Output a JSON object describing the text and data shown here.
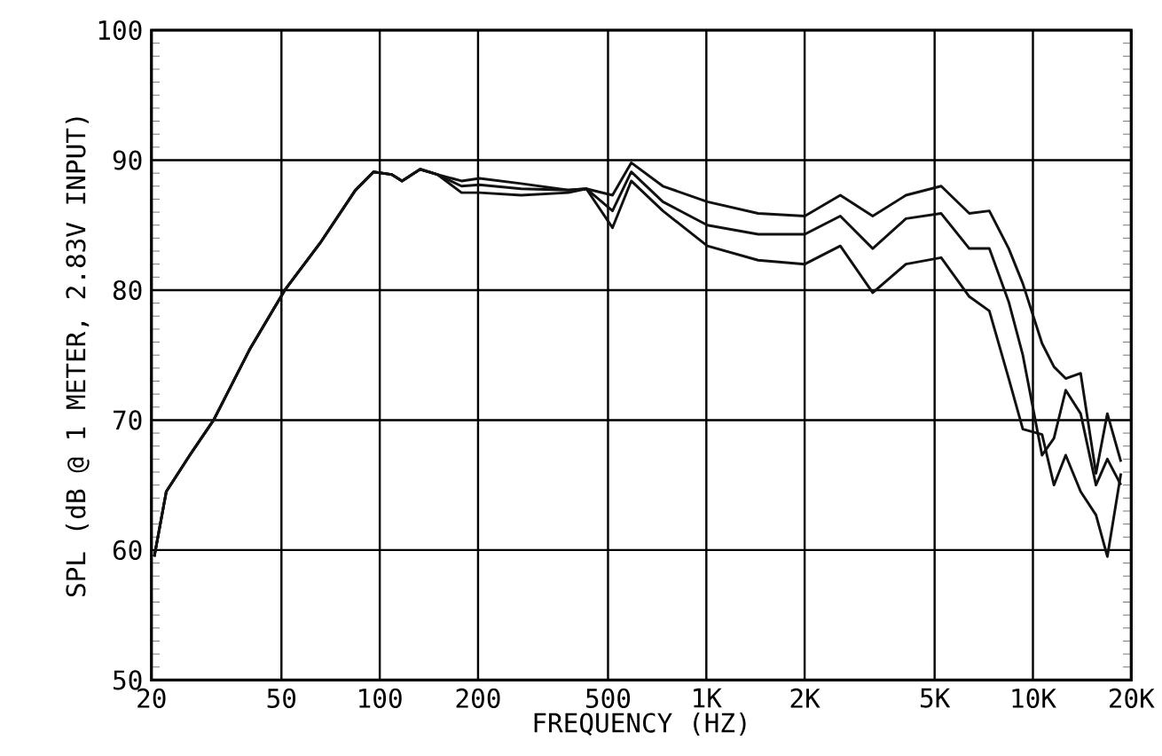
{
  "chart_data": {
    "type": "line",
    "xlabel": "FREQUENCY (HZ)",
    "ylabel": "SPL (dB @ 1 METER, 2.83V INPUT)",
    "log": "x",
    "grid": true,
    "xlim": [
      20,
      20000
    ],
    "ylim": [
      50,
      100
    ],
    "xticks": [
      20,
      50,
      100,
      200,
      500,
      {
        "value": 1000,
        "label": "1K"
      },
      {
        "value": 2000,
        "label": "2K"
      },
      {
        "value": 5000,
        "label": "5K"
      },
      {
        "value": 10000,
        "label": "10K"
      },
      {
        "value": 20000,
        "label": "20K"
      }
    ],
    "yticks": [
      50,
      60,
      70,
      80,
      90,
      100
    ],
    "series": [
      {
        "color": "#111111",
        "x": [
          20.4,
          22.2,
          26.2,
          31,
          39.9,
          51.2,
          65.6,
          84.3,
          95.7,
          108.6,
          117,
          133,
          150,
          178,
          202,
          271,
          378,
          429,
          516,
          589,
          736,
          1007,
          1441,
          2002,
          2572,
          3232,
          4085,
          5237,
          6386,
          7355,
          8432,
          9313,
          10664,
          11600,
          12600,
          14000,
          15600,
          16900,
          18600
        ],
        "values": [
          59.5,
          64.5,
          67.3,
          70.0,
          75.4,
          80.0,
          83.6,
          87.7,
          89.1,
          88.9,
          88.4,
          89.3,
          88.9,
          88.4,
          88.6,
          88.2,
          87.7,
          87.8,
          87.3,
          89.8,
          88.0,
          86.8,
          85.9,
          85.7,
          87.3,
          85.7,
          87.3,
          88.0,
          85.9,
          86.1,
          83.2,
          80.5,
          75.9,
          74.1,
          73.2,
          73.6,
          65.9,
          70.5,
          66.8
        ]
      },
      {
        "color": "#111111",
        "x": [
          20.4,
          22.2,
          26.2,
          31,
          39.9,
          51.2,
          65.6,
          84.3,
          95.7,
          108.6,
          117,
          133,
          150,
          178,
          202,
          271,
          378,
          429,
          516,
          589,
          736,
          1007,
          1441,
          2002,
          2572,
          3232,
          4085,
          5237,
          6386,
          7355,
          8432,
          9313,
          10664,
          11600,
          12600,
          14000,
          15600,
          16900,
          18600
        ],
        "values": [
          59.5,
          64.5,
          67.3,
          70.0,
          75.4,
          80.0,
          83.6,
          87.7,
          89.1,
          88.9,
          88.4,
          89.3,
          88.9,
          88.0,
          88.1,
          87.8,
          87.7,
          87.8,
          86.1,
          89.1,
          86.8,
          85.0,
          84.3,
          84.3,
          85.7,
          83.2,
          85.5,
          85.9,
          83.2,
          83.2,
          79.1,
          75.0,
          67.3,
          68.6,
          72.3,
          70.5,
          65.0,
          67.0,
          65.0
        ]
      },
      {
        "color": "#111111",
        "x": [
          20.4,
          22.2,
          26.2,
          31,
          39.9,
          51.2,
          65.6,
          84.3,
          95.7,
          108.6,
          117,
          133,
          150,
          178,
          202,
          271,
          378,
          429,
          516,
          589,
          736,
          1007,
          1441,
          2002,
          2572,
          3232,
          4085,
          5237,
          6386,
          7355,
          8432,
          9313,
          10664,
          11600,
          12600,
          14000,
          15600,
          16900,
          18600
        ],
        "values": [
          59.5,
          64.5,
          67.3,
          70.0,
          75.4,
          80.0,
          83.6,
          87.7,
          89.1,
          88.9,
          88.4,
          89.3,
          88.9,
          87.5,
          87.5,
          87.3,
          87.5,
          87.8,
          84.8,
          88.4,
          86.1,
          83.4,
          82.3,
          82.0,
          83.4,
          79.8,
          82.0,
          82.5,
          79.5,
          78.4,
          73.2,
          69.3,
          68.9,
          65.0,
          67.3,
          64.5,
          62.7,
          59.5,
          65.9
        ]
      }
    ]
  }
}
